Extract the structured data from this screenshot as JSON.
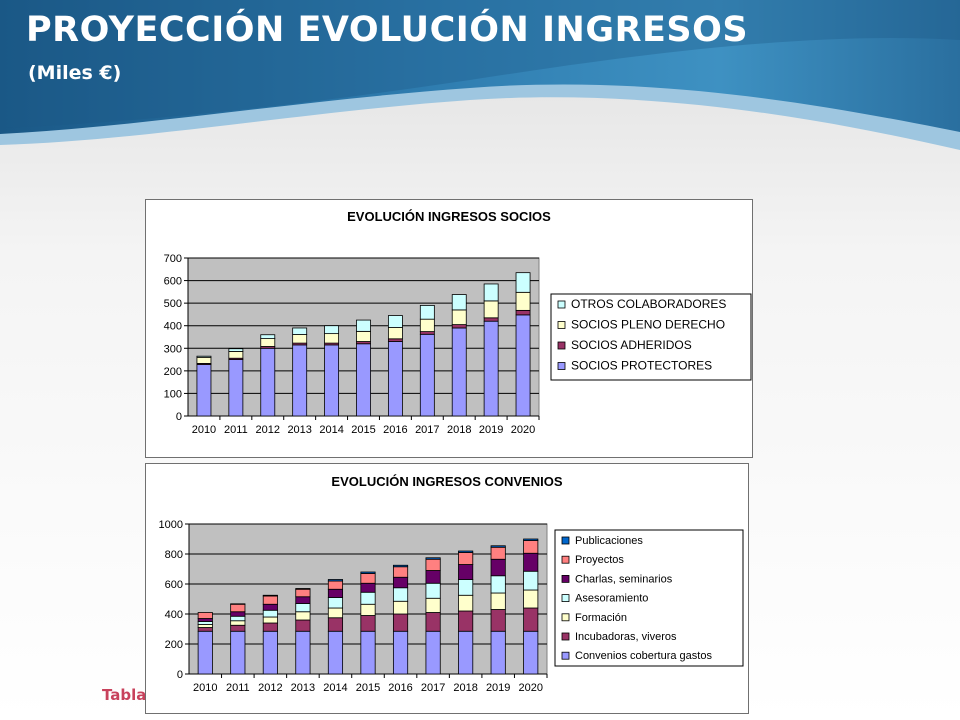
{
  "header": {
    "title": "PROYECCIÓN EVOLUCIÓN INGRESOS",
    "subtitle": "(Miles €)"
  },
  "footer": {
    "text": "Tabla"
  },
  "colors": {
    "header_dark": "#1d5b86",
    "header_light": "#3f8fc0",
    "plot_bg": "#c0c0c0",
    "footnote": "#c8425c"
  },
  "chart_data": [
    {
      "type": "bar",
      "stacked": true,
      "title": "EVOLUCIÓN INGRESOS SOCIOS",
      "xlabel": "",
      "ylabel": "",
      "ylim": [
        0,
        700
      ],
      "yticks": [
        0,
        100,
        200,
        300,
        400,
        500,
        600,
        700
      ],
      "grid": true,
      "legend_position": "right",
      "categories": [
        "2010",
        "2011",
        "2012",
        "2013",
        "2014",
        "2015",
        "2016",
        "2017",
        "2018",
        "2019",
        "2020"
      ],
      "series": [
        {
          "name": "SOCIOS PROTECTORES",
          "color": "#9999ff",
          "values": [
            228,
            250,
            300,
            315,
            315,
            320,
            330,
            362,
            390,
            420,
            448
          ]
        },
        {
          "name": "SOCIOS ADHERIDOS",
          "color": "#993366",
          "values": [
            5,
            6,
            8,
            8,
            8,
            10,
            12,
            12,
            15,
            15,
            20
          ]
        },
        {
          "name": "SOCIOS PLENO DERECHO",
          "color": "#ffffcc",
          "values": [
            27,
            30,
            35,
            38,
            42,
            45,
            50,
            55,
            65,
            75,
            80
          ]
        },
        {
          "name": "OTROS COLABORADORES",
          "color": "#ccffff",
          "values": [
            5,
            12,
            17,
            29,
            35,
            50,
            53,
            61,
            68,
            75,
            87
          ]
        }
      ]
    },
    {
      "type": "bar",
      "stacked": true,
      "title": "EVOLUCIÓN INGRESOS CONVENIOS",
      "xlabel": "",
      "ylabel": "",
      "ylim": [
        0,
        1000
      ],
      "yticks": [
        0,
        200,
        400,
        600,
        800,
        1000
      ],
      "grid": true,
      "legend_position": "right",
      "categories": [
        "2010",
        "2011",
        "2012",
        "2013",
        "2014",
        "2015",
        "2016",
        "2017",
        "2018",
        "2019",
        "2020"
      ],
      "series": [
        {
          "name": "Convenios cobertura gastos",
          "color": "#9999ff",
          "values": [
            285,
            285,
            285,
            285,
            285,
            285,
            285,
            285,
            285,
            285,
            285
          ]
        },
        {
          "name": "Incubadoras, viveros",
          "color": "#993366",
          "values": [
            25,
            40,
            55,
            75,
            90,
            105,
            115,
            125,
            135,
            145,
            155
          ]
        },
        {
          "name": "Formación",
          "color": "#ffffcc",
          "values": [
            20,
            30,
            40,
            55,
            65,
            75,
            85,
            95,
            105,
            110,
            120
          ]
        },
        {
          "name": "Asesoramiento",
          "color": "#ccffff",
          "values": [
            20,
            30,
            45,
            55,
            70,
            80,
            90,
            100,
            105,
            115,
            125
          ]
        },
        {
          "name": "Charlas, seminarios",
          "color": "#660066",
          "values": [
            20,
            30,
            40,
            45,
            55,
            60,
            70,
            85,
            100,
            110,
            120
          ]
        },
        {
          "name": "Proyectos",
          "color": "#ff8080",
          "values": [
            40,
            50,
            55,
            50,
            55,
            65,
            70,
            75,
            80,
            80,
            85
          ]
        },
        {
          "name": "Publicaciones",
          "color": "#0066cc",
          "values": [
            0,
            3,
            5,
            5,
            10,
            10,
            10,
            10,
            10,
            10,
            10
          ]
        }
      ]
    }
  ]
}
